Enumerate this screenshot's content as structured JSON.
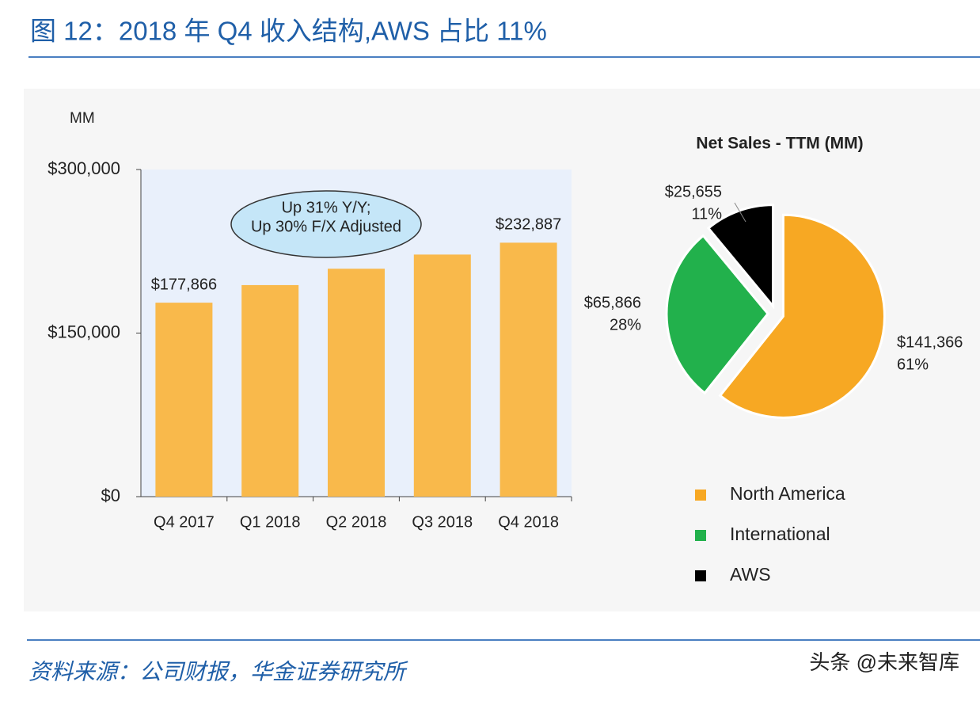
{
  "title": "图 12：2018 年 Q4 收入结构,AWS 占比 11%",
  "source": "资料来源：公司财报，华金证券研究所",
  "watermark": "头条 @未来智库",
  "chart_data": [
    {
      "type": "bar",
      "y_label": "MM",
      "categories": [
        "Q4 2017",
        "Q1 2018",
        "Q2 2018",
        "Q3 2018",
        "Q4 2018"
      ],
      "values": [
        177866,
        194000,
        209000,
        222000,
        232887
      ],
      "value_labels": [
        "$177,866",
        null,
        null,
        null,
        "$232,887"
      ],
      "color": "#f9b94b",
      "ylim": [
        0,
        300000
      ],
      "yticks": [
        {
          "value": 0,
          "label": "$0"
        },
        {
          "value": 150000,
          "label": "$150,000"
        },
        {
          "value": 300000,
          "label": "$300,000"
        }
      ],
      "annotations": [
        "Up 31% Y/Y;",
        "Up 30% F/X Adjusted"
      ]
    },
    {
      "type": "pie",
      "title": "Net Sales - TTM (MM)",
      "categories": [
        "North America",
        "International",
        "AWS"
      ],
      "values": [
        141366,
        65866,
        25655
      ],
      "value_labels": [
        "$141,366",
        "$65,866",
        "$25,655"
      ],
      "share_labels": [
        "61%",
        "28%",
        "11%"
      ],
      "colors": [
        "#f7a823",
        "#22b14c",
        "#000000"
      ],
      "legend": "bottom"
    }
  ]
}
